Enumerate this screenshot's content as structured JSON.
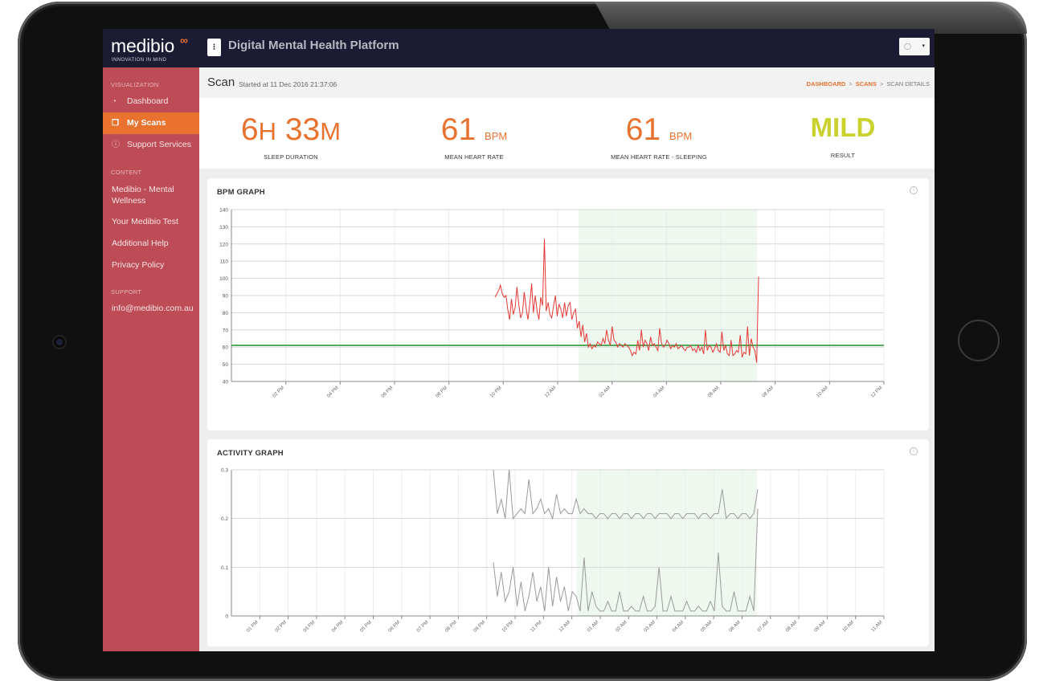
{
  "app": {
    "logo_text": "medibio",
    "logo_symbol": "∞",
    "tagline": "INNOVATION IN MIND",
    "platform_title": "Digital Mental Health Platform",
    "menu_icon": "⁝",
    "user_icon": "user-icon",
    "user_caret": "▾"
  },
  "sidebar": {
    "visualization_heading": "VISUALIZATION",
    "items": [
      {
        "label": "Dashboard",
        "icon": "gauge-icon",
        "glyph": "◔"
      },
      {
        "label": "My Scans",
        "icon": "clipboard-icon",
        "glyph": "❐",
        "active": true
      },
      {
        "label": "Support Services",
        "icon": "info-icon",
        "glyph": "ⓘ"
      }
    ],
    "content_heading": "CONTENT",
    "content_links": [
      "Medibio - Mental Wellness",
      "Your Medibio Test",
      "Additional Help",
      "Privacy Policy"
    ],
    "support_heading": "SUPPORT",
    "support_email": "info@medibio.com.au"
  },
  "header": {
    "title": "Scan",
    "subtitle": "Started at 11 Dec 2016 21:37:06",
    "breadcrumb": [
      "DASHBOARD",
      "SCANS",
      "SCAN DETAILS"
    ],
    "breadcrumb_sep": ">"
  },
  "stats": {
    "sleep": {
      "hours": "6",
      "h_unit": "H",
      "minutes": "33",
      "m_unit": "M",
      "label": "SLEEP DURATION"
    },
    "mean_hr": {
      "value": "61",
      "unit": "BPM",
      "label": "MEAN HEART RATE"
    },
    "mean_hr_sleep": {
      "value": "61",
      "unit": "BPM",
      "label": "MEAN HEART RATE - SLEEPING"
    },
    "result": {
      "value": "MILD",
      "label": "RESULT"
    }
  },
  "colors": {
    "accent": "#e8722e",
    "sidebar": "#bd4c56",
    "topbar": "#1c1b34",
    "result": "#c9d12c",
    "bpm_line": "#e53935",
    "mean_line": "#2e9a3a",
    "sleep_band": "#eef8ee",
    "activity_line": "#9a9a9a"
  },
  "chart_data": [
    {
      "type": "line",
      "title": "BPM GRAPH",
      "info_icon": "info-icon",
      "ylim": [
        40,
        140
      ],
      "yticks": [
        "140",
        "130",
        "120",
        "110",
        "100",
        "90",
        "80",
        "70",
        "60",
        "50",
        "40"
      ],
      "xticks": [
        "02 PM",
        "04 PM",
        "06 PM",
        "08 PM",
        "10 PM",
        "12 AM",
        "02 AM",
        "04 AM",
        "06 AM",
        "08 AM",
        "10 AM",
        "12 PM"
      ],
      "mean_line": 61,
      "sleep_window": [
        "~12:30 AM",
        "~07:00 AM"
      ],
      "series": [
        {
          "values": [
            89,
            91,
            93,
            96,
            91,
            89,
            90,
            82,
            76,
            88,
            79,
            83,
            95,
            85,
            77,
            80,
            92,
            83,
            76,
            85,
            97,
            80,
            90,
            81,
            76,
            89,
            84,
            123,
            81,
            86,
            79,
            77,
            84,
            90,
            78,
            85,
            82,
            77,
            86,
            78,
            84,
            86,
            76,
            80,
            82,
            71,
            75,
            66,
            73,
            63,
            68,
            60,
            62,
            59,
            61,
            60,
            63,
            62,
            61,
            65,
            62,
            70,
            64,
            61,
            72,
            64,
            63,
            60,
            62,
            61,
            60,
            62,
            61,
            60,
            58,
            55,
            57,
            56,
            64,
            58,
            70,
            60,
            64,
            62,
            58,
            66,
            61,
            62,
            60,
            58,
            71,
            62,
            60,
            61,
            64,
            62,
            59,
            61,
            60,
            62,
            59,
            60,
            61,
            59,
            58,
            60,
            60,
            61,
            58,
            59,
            57,
            61,
            58,
            60,
            56,
            70,
            58,
            61,
            60,
            57,
            59,
            62,
            58,
            57,
            69,
            58,
            61,
            56,
            55,
            64,
            55,
            56,
            58,
            57,
            67,
            54,
            57,
            56,
            72,
            55,
            65,
            60,
            58,
            51,
            101
          ]
        }
      ]
    },
    {
      "type": "line",
      "title": "ACTIVITY GRAPH",
      "info_icon": "info-icon",
      "ylim": [
        0,
        0.3
      ],
      "yticks": [
        "0.3",
        "0.2",
        "0.1",
        "0"
      ],
      "xticks": [
        "01 PM",
        "02 PM",
        "03 PM",
        "04 PM",
        "05 PM",
        "06 PM",
        "07 PM",
        "08 PM",
        "09 PM",
        "10 PM",
        "11 PM",
        "12 AM",
        "01 AM",
        "02 AM",
        "03 AM",
        "04 AM",
        "05 AM",
        "06 AM",
        "07 AM",
        "08 AM",
        "09 AM",
        "10 AM",
        "11 AM"
      ],
      "sleep_window": [
        "~01:00 AM",
        "~07:10 AM"
      ],
      "series": [
        {
          "name": "upper",
          "values": [
            0.3,
            0.21,
            0.24,
            0.2,
            0.3,
            0.2,
            0.21,
            0.22,
            0.21,
            0.28,
            0.21,
            0.22,
            0.24,
            0.21,
            0.22,
            0.2,
            0.25,
            0.21,
            0.22,
            0.21,
            0.21,
            0.24,
            0.21,
            0.22,
            0.21,
            0.21,
            0.2,
            0.21,
            0.21,
            0.2,
            0.21,
            0.21,
            0.2,
            0.21,
            0.21,
            0.2,
            0.21,
            0.21,
            0.2,
            0.21,
            0.21,
            0.2,
            0.21,
            0.21,
            0.21,
            0.2,
            0.21,
            0.21,
            0.2,
            0.21,
            0.21,
            0.21,
            0.2,
            0.21,
            0.21,
            0.2,
            0.21,
            0.21,
            0.26,
            0.2,
            0.21,
            0.21,
            0.2,
            0.21,
            0.21,
            0.2,
            0.21,
            0.26
          ]
        },
        {
          "name": "lower",
          "values": [
            0.11,
            0.04,
            0.09,
            0.03,
            0.05,
            0.1,
            0.02,
            0.07,
            0.01,
            0.04,
            0.09,
            0.03,
            0.06,
            0.01,
            0.1,
            0.02,
            0.08,
            0.03,
            0.06,
            0.01,
            0.05,
            0.04,
            0.01,
            0.12,
            0.01,
            0.05,
            0.02,
            0.01,
            0.01,
            0.03,
            0.01,
            0.01,
            0.05,
            0.01,
            0.01,
            0.02,
            0.01,
            0.01,
            0.04,
            0.01,
            0.01,
            0.02,
            0.1,
            0.01,
            0.01,
            0.04,
            0.01,
            0.01,
            0.01,
            0.03,
            0.01,
            0.01,
            0.02,
            0.01,
            0.01,
            0.03,
            0.01,
            0.13,
            0.02,
            0.01,
            0.01,
            0.05,
            0.01,
            0.01,
            0.01,
            0.04,
            0.01,
            0.22
          ]
        }
      ]
    }
  ]
}
